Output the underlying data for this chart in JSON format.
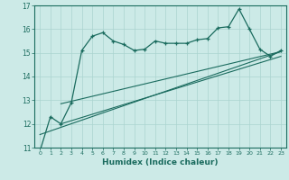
{
  "title": "",
  "xlabel": "Humidex (Indice chaleur)",
  "ylabel": "",
  "bg_color": "#cceae7",
  "grid_color": "#aad4d0",
  "line_color": "#1a6b5e",
  "xlim": [
    -0.5,
    23.5
  ],
  "ylim": [
    11,
    17
  ],
  "yticks": [
    11,
    12,
    13,
    14,
    15,
    16,
    17
  ],
  "xticks": [
    0,
    1,
    2,
    3,
    4,
    5,
    6,
    7,
    8,
    9,
    10,
    11,
    12,
    13,
    14,
    15,
    16,
    17,
    18,
    19,
    20,
    21,
    22,
    23
  ],
  "zigzag_x": [
    0,
    1,
    2,
    3,
    4,
    5,
    6,
    7,
    8,
    9,
    10,
    11,
    12,
    13,
    14,
    15,
    16,
    17,
    18,
    19,
    20,
    21,
    22,
    23
  ],
  "zigzag_y": [
    10.85,
    12.3,
    12.0,
    12.9,
    15.1,
    15.7,
    15.85,
    15.5,
    15.35,
    15.1,
    15.15,
    15.5,
    15.4,
    15.4,
    15.4,
    15.55,
    15.6,
    16.05,
    16.1,
    16.85,
    16.0,
    15.15,
    14.85,
    15.1
  ],
  "line1_x": [
    0,
    23
  ],
  "line1_y": [
    11.55,
    15.05
  ],
  "line2_x": [
    2,
    23
  ],
  "line2_y": [
    12.0,
    14.85
  ],
  "line3_x": [
    2,
    23
  ],
  "line3_y": [
    12.85,
    15.05
  ],
  "figsize": [
    3.2,
    2.0
  ],
  "dpi": 100
}
